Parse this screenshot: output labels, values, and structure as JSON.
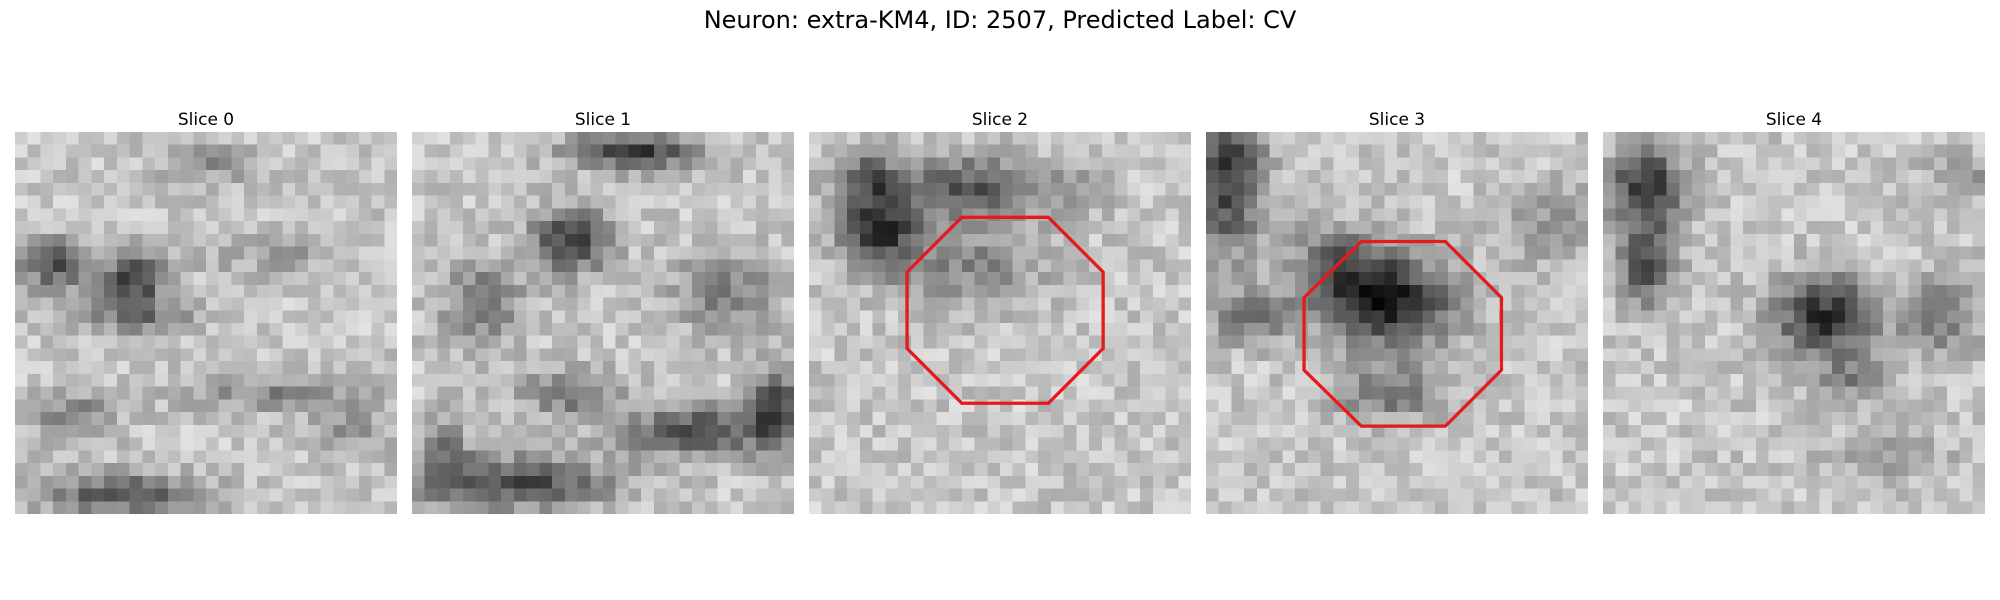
{
  "figure": {
    "title": "Neuron: extra-KM4, ID: 2507, Predicted Label: CV"
  },
  "slices": [
    {
      "title": "Slice 0",
      "has_roi": false
    },
    {
      "title": "Slice 1",
      "has_roi": false
    },
    {
      "title": "Slice 2",
      "has_roi": true
    },
    {
      "title": "Slice 3",
      "has_roi": true
    },
    {
      "title": "Slice 4",
      "has_roi": false
    }
  ],
  "colors": {
    "roi_outline": "#e41a1c",
    "background": "#ffffff"
  },
  "image": {
    "colormap": "grayscale",
    "grid_size": 30
  }
}
